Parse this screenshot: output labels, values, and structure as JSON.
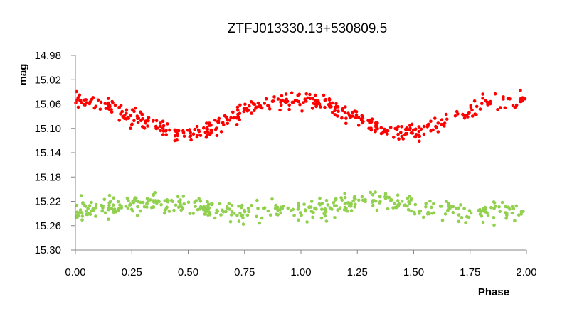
{
  "chart_data": {
    "type": "scatter",
    "title": "ZTFJ013330.13+530809.5",
    "xlabel": "Phase",
    "ylabel": "mag",
    "xlim": [
      0.0,
      2.0
    ],
    "ylim": [
      15.3,
      14.98
    ],
    "y_inverted": true,
    "x_ticks": [
      "0.00",
      "0.25",
      "0.50",
      "0.75",
      "1.00",
      "1.25",
      "1.50",
      "1.75",
      "2.00"
    ],
    "y_ticks": [
      "14.98",
      "15.02",
      "15.06",
      "15.10",
      "15.14",
      "15.18",
      "15.22",
      "15.26",
      "15.30"
    ],
    "grid": false,
    "legend": "none",
    "series": [
      {
        "color": "#ff0000",
        "shape": "sinusoid",
        "period_phase": 1.0,
        "mean_mag": 15.077,
        "amplitude": 0.025,
        "scatter_mag": 0.01,
        "min_phase": 0.5,
        "max_phase": 0.0,
        "x": [
          0.0,
          0.05,
          0.1,
          0.15,
          0.2,
          0.25,
          0.3,
          0.35,
          0.4,
          0.45,
          0.5,
          0.55,
          0.6,
          0.65,
          0.7,
          0.75,
          0.8,
          0.85,
          0.9,
          0.95,
          1.0,
          1.05,
          1.1,
          1.15,
          1.2,
          1.25,
          1.3,
          1.35,
          1.4,
          1.45,
          1.5,
          1.55,
          1.6,
          1.65,
          1.7,
          1.75,
          1.8,
          1.85,
          1.9,
          1.95,
          2.0
        ],
        "y": [
          15.054,
          15.054,
          15.056,
          15.063,
          15.071,
          15.08,
          15.088,
          15.096,
          15.103,
          15.108,
          15.11,
          15.105,
          15.099,
          15.09,
          15.081,
          15.072,
          15.064,
          15.058,
          15.054,
          15.052,
          15.052,
          15.054,
          15.058,
          15.066,
          15.075,
          15.083,
          15.091,
          15.099,
          15.105,
          15.109,
          15.109,
          15.104,
          15.097,
          15.087,
          15.078,
          15.07,
          15.062,
          15.057,
          15.053,
          15.052,
          15.053
        ]
      },
      {
        "color": "#92d050",
        "shape": "sinusoid",
        "period_phase": 0.5,
        "mean_mag": 15.231,
        "amplitude": 0.007,
        "scatter_mag": 0.012,
        "x": [
          0.0,
          0.05,
          0.1,
          0.15,
          0.2,
          0.25,
          0.3,
          0.35,
          0.4,
          0.45,
          0.5,
          0.55,
          0.6,
          0.65,
          0.7,
          0.75,
          0.8,
          0.85,
          0.9,
          0.95,
          1.0,
          1.05,
          1.1,
          1.15,
          1.2,
          1.25,
          1.3,
          1.35,
          1.4,
          1.45,
          1.5,
          1.55,
          1.6,
          1.65,
          1.7,
          1.75,
          1.8,
          1.85,
          1.9,
          1.95,
          2.0
        ],
        "y": [
          15.238,
          15.235,
          15.232,
          15.228,
          15.226,
          15.224,
          15.222,
          15.221,
          15.222,
          15.224,
          15.226,
          15.228,
          15.232,
          15.236,
          15.239,
          15.24,
          15.238,
          15.236,
          15.233,
          15.231,
          15.234,
          15.236,
          15.233,
          15.229,
          15.226,
          15.224,
          15.222,
          15.221,
          15.222,
          15.224,
          15.227,
          15.229,
          15.232,
          15.236,
          15.239,
          15.24,
          15.238,
          15.236,
          15.234,
          15.235,
          15.238
        ]
      }
    ]
  }
}
